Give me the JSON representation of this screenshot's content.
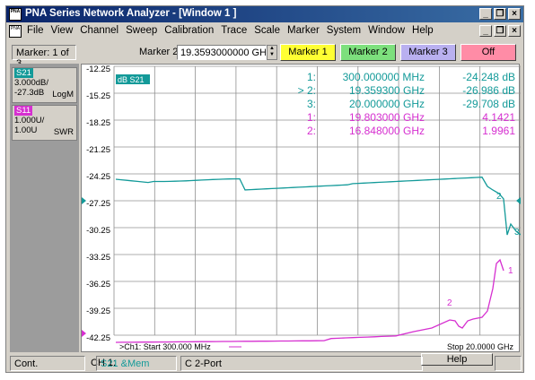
{
  "window": {
    "title": "PNA Series Network Analyzer - [Window 1 ]",
    "logo_text": "PNA"
  },
  "menu": {
    "items": [
      "File",
      "View",
      "Channel",
      "Sweep",
      "Calibration",
      "Trace",
      "Scale",
      "Marker",
      "System",
      "Window",
      "Help"
    ]
  },
  "toolbar": {
    "marker_of": "Marker: 1 of 3",
    "marker2_label": "Marker 2",
    "marker2_value": "19.3593000000 GH:",
    "buttons": [
      {
        "label": "Marker 1",
        "color": "#ffff33"
      },
      {
        "label": "Marker 2",
        "color": "#7de07d"
      },
      {
        "label": "Marker 3",
        "color": "#b9b0f0"
      },
      {
        "label": "Off",
        "color": "#ff8ca6"
      }
    ]
  },
  "traces": [
    {
      "tag": "S21",
      "line1": "3.000dB/",
      "line2": "-27.3dB",
      "format": "LogM",
      "color": "#139a99"
    },
    {
      "tag": "S11",
      "line1": "1.000U/",
      "line2": "1.00U",
      "format": "SWR",
      "color": "#d62fd0"
    }
  ],
  "plot": {
    "trace_label": "dB S21",
    "y_ticks": [
      "-12.25",
      "-15.25",
      "-18.25",
      "-21.25",
      "-24.25",
      "-27.25",
      "-30.25",
      "-33.25",
      "-36.25",
      "-39.25",
      "-42.25"
    ],
    "start_label": ">Ch1: Start  300.000 MHz",
    "stop_label": "Stop  20.0000 GHz",
    "markers": [
      {
        "num": "1:",
        "freq": "300.000000 MHz",
        "val": "-24.248 dB",
        "color": "#139a99"
      },
      {
        "num": "> 2:",
        "freq": "19.359300 GHz",
        "val": "-26.986 dB",
        "color": "#139a99"
      },
      {
        "num": "3:",
        "freq": "20.000000 GHz",
        "val": "-29.708 dB",
        "color": "#139a99"
      },
      {
        "num": "1:",
        "freq": "19.803000 GHz",
        "val": "4.1421",
        "color": "#d62fd0"
      },
      {
        "num": "2:",
        "freq": "16.848000 GHz",
        "val": "1.9961",
        "color": "#d62fd0"
      }
    ],
    "marker_labels": {
      "s21_m2": "2",
      "s21_m3": "3",
      "s11_m1": "1",
      "s11_m2": "2"
    }
  },
  "status": {
    "mode": "Cont.",
    "channel": "CH 1:",
    "meas": "S21 &Mem",
    "port": "C  2-Port",
    "help": "Help"
  }
}
